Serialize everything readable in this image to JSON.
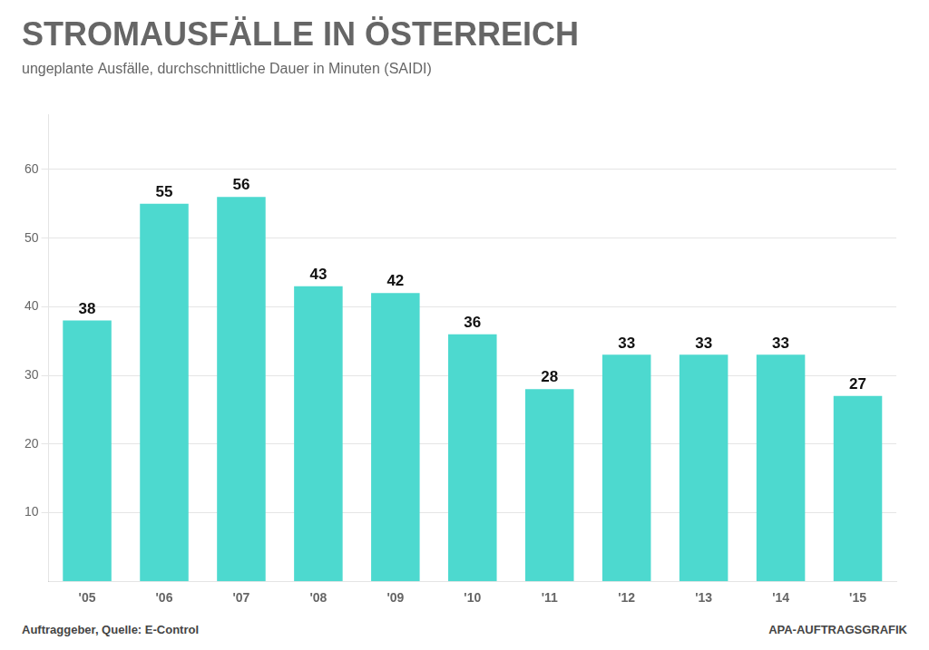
{
  "chart_data": {
    "type": "bar",
    "title": "STROMAUSFÄLLE IN ÖSTERREICH",
    "subtitle": "ungeplante Ausfälle, durchschnittliche Dauer in Minuten (SAIDI)",
    "categories": [
      "'05",
      "'06",
      "'07",
      "'08",
      "'09",
      "'10",
      "'11",
      "'12",
      "'13",
      "'14",
      "'15"
    ],
    "values": [
      38,
      55,
      56,
      43,
      42,
      36,
      28,
      33,
      33,
      33,
      27
    ],
    "color": "#4DD9CF",
    "ylim": [
      0,
      68
    ],
    "yticks": [
      10,
      20,
      30,
      40,
      50,
      60
    ],
    "grid": true,
    "data_labels": true,
    "annotations": [
      "Auftraggeber, Quelle: E-Control",
      "APA-AUFTRAGSGRAFIK"
    ]
  }
}
